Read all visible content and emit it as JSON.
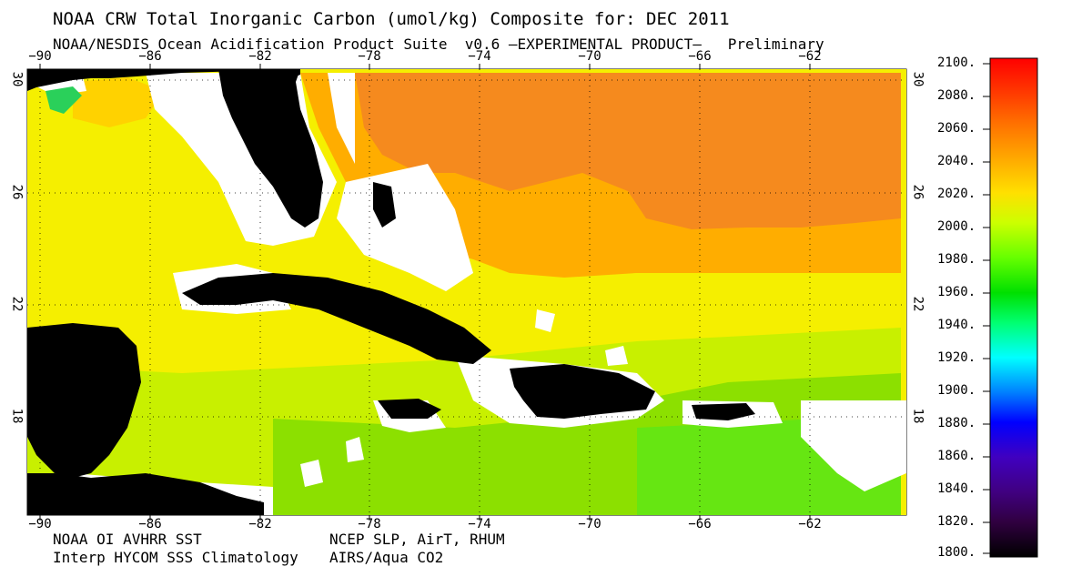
{
  "header": {
    "title": "NOAA CRW Total Inorganic Carbon (umol/kg) Composite for: DEC 2011",
    "subtitle": "NOAA/NESDIS Ocean Acidification Product Suite  v0.6 –EXPERIMENTAL PRODUCT–   Preliminary"
  },
  "footer": {
    "source_sst": "NOAA OI AVHRR SST",
    "source_sss": "Interp HYCOM SSS Climatology",
    "source_met": "NCEP SLP, AirT, RHUM",
    "source_co2": "AIRS/Aqua CO2"
  },
  "axes": {
    "lon_ticks": [
      "−90",
      "−86",
      "−82",
      "−78",
      "−74",
      "−70",
      "−66",
      "−62"
    ],
    "lon_values": [
      -90,
      -86,
      -82,
      -78,
      -74,
      -70,
      -66,
      -62
    ],
    "lat_ticks": [
      "30",
      "26",
      "22",
      "18"
    ],
    "lat_values": [
      30,
      26,
      22,
      18
    ],
    "lon_range": [
      -90.9,
      -58.6
    ],
    "lat_range": [
      14.5,
      30.4
    ]
  },
  "colorbar": {
    "labels": [
      "2100.",
      "2080.",
      "2060.",
      "2040.",
      "2020.",
      "2000.",
      "1980.",
      "1960.",
      "1940.",
      "1920.",
      "1900.",
      "1880.",
      "1860.",
      "1840.",
      "1820.",
      "1800."
    ],
    "values": [
      2100,
      2080,
      2060,
      2040,
      2020,
      2000,
      1980,
      1960,
      1940,
      1920,
      1900,
      1880,
      1860,
      1840,
      1820,
      1800
    ],
    "colors": [
      "#ff0000",
      "#ff3a00",
      "#ff7000",
      "#ffa800",
      "#ffe000",
      "#ccff00",
      "#66ff00",
      "#00e000",
      "#00ff70",
      "#00ffff",
      "#0080ff",
      "#0000ff",
      "#4000c0",
      "#400080",
      "#300040",
      "#000000"
    ]
  },
  "colors": {
    "land": "#000000",
    "no_data": "#ffffff",
    "tcarbon_2050": "#f58a1e",
    "tcarbon_2040": "#ffad00",
    "tcarbon_2030": "#ffd200",
    "tcarbon_2020": "#f5ef00",
    "tcarbon_2000": "#c8f000",
    "tcarbon_1985": "#8ce000",
    "tcarbon_1975": "#66e612"
  }
}
